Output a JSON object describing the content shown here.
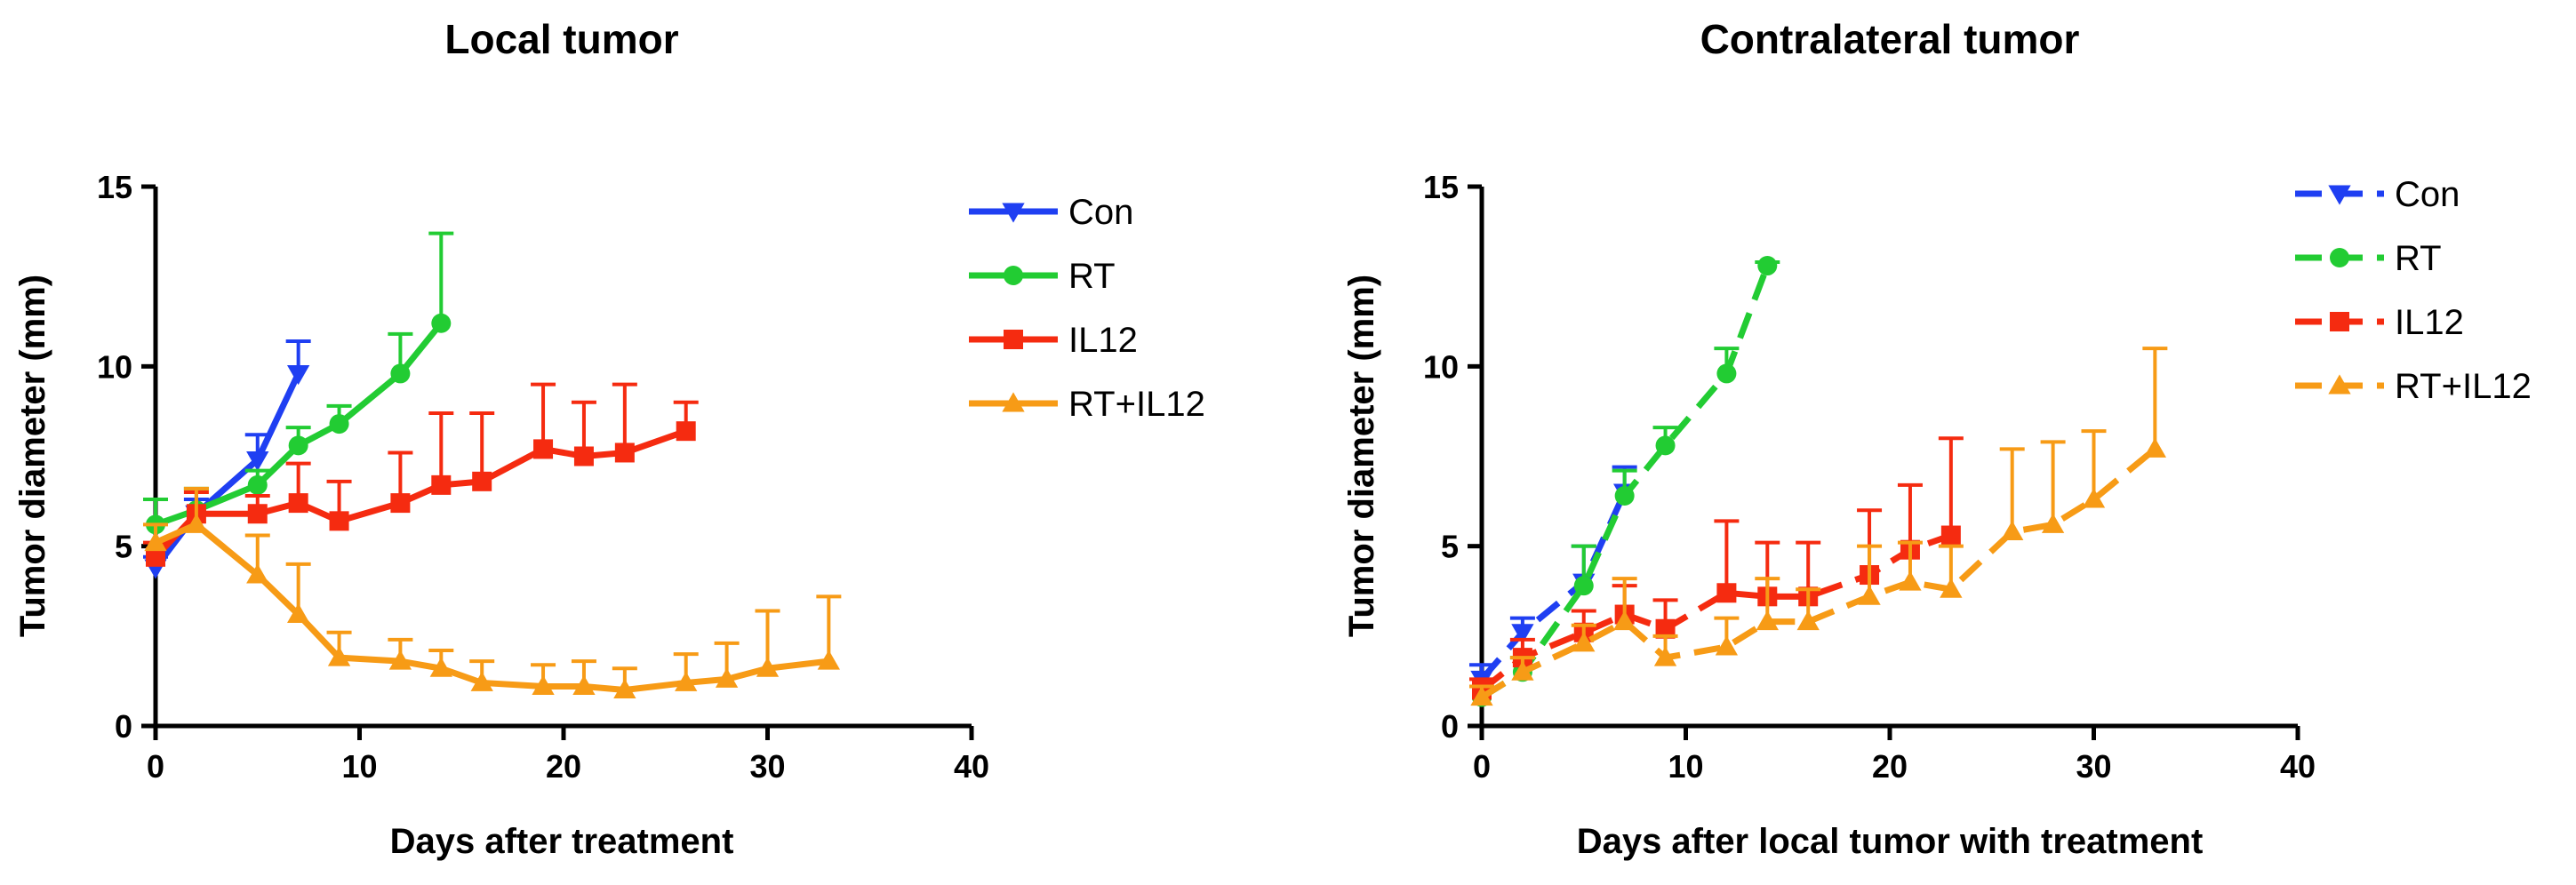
{
  "chart_data": [
    {
      "type": "line",
      "title": "Local tumor",
      "xlabel": "Days after treatment",
      "ylabel": "Tumor diameter (mm)",
      "xlim": [
        0,
        40
      ],
      "ylim": [
        0,
        15
      ],
      "xticks": [
        0,
        10,
        20,
        30,
        40
      ],
      "yticks": [
        0,
        5,
        10,
        15
      ],
      "xtick_labels": [
        "0",
        "10",
        "20",
        "30",
        "40"
      ],
      "ytick_labels": [
        "0",
        "5",
        "10",
        "15"
      ],
      "dashed": false,
      "grid": false,
      "legend_position": "right",
      "series": [
        {
          "name": "Con",
          "color": "#1f3ff2",
          "marker": "triangle-down",
          "x": [
            0,
            2,
            5,
            7
          ],
          "y": [
            4.4,
            5.9,
            7.4,
            9.8
          ],
          "err": [
            0.3,
            0.4,
            0.7,
            0.9
          ]
        },
        {
          "name": "RT",
          "color": "#22cc33",
          "marker": "circle",
          "x": [
            0,
            2,
            5,
            7,
            9,
            12,
            14
          ],
          "y": [
            5.6,
            6.0,
            6.7,
            7.8,
            8.4,
            9.8,
            11.2
          ],
          "err": [
            0.7,
            0.6,
            0.4,
            0.5,
            0.5,
            1.1,
            2.5
          ]
        },
        {
          "name": "IL12",
          "color": "#f52b10",
          "marker": "square",
          "x": [
            0,
            2,
            5,
            7,
            9,
            12,
            14,
            16,
            19,
            21,
            23,
            26
          ],
          "y": [
            4.7,
            5.9,
            5.9,
            6.2,
            5.7,
            6.2,
            6.7,
            6.8,
            7.7,
            7.5,
            7.6,
            8.2
          ],
          "err": [
            0.4,
            0.6,
            0.5,
            1.1,
            1.1,
            1.4,
            2.0,
            1.9,
            1.8,
            1.5,
            1.9,
            0.8
          ]
        },
        {
          "name": "RT+IL12",
          "color": "#f79b16",
          "marker": "triangle-up",
          "x": [
            0,
            2,
            5,
            7,
            9,
            12,
            14,
            16,
            19,
            21,
            23,
            26,
            28,
            30,
            33
          ],
          "y": [
            5.1,
            5.6,
            4.2,
            3.1,
            1.9,
            1.8,
            1.6,
            1.2,
            1.1,
            1.1,
            1.0,
            1.2,
            1.3,
            1.6,
            1.8
          ],
          "err": [
            0.5,
            1.0,
            1.1,
            1.4,
            0.7,
            0.6,
            0.5,
            0.6,
            0.6,
            0.7,
            0.6,
            0.8,
            1.0,
            1.6,
            1.8
          ]
        }
      ]
    },
    {
      "type": "line",
      "title": "Contralateral tumor",
      "xlabel": "Days after local tumor with treatment",
      "ylabel": "Tumor diameter (mm)",
      "xlim": [
        0,
        40
      ],
      "ylim": [
        0,
        15
      ],
      "xticks": [
        0,
        10,
        20,
        30,
        40
      ],
      "yticks": [
        0,
        5,
        10,
        15
      ],
      "xtick_labels": [
        "0",
        "10",
        "20",
        "30",
        "40"
      ],
      "ytick_labels": [
        "0",
        "5",
        "10",
        "15"
      ],
      "dashed": true,
      "grid": false,
      "legend_position": "right",
      "series": [
        {
          "name": "Con",
          "color": "#1f3ff2",
          "marker": "triangle-down",
          "x": [
            0,
            2,
            5,
            7
          ],
          "y": [
            1.3,
            2.6,
            4.0,
            6.5
          ],
          "err": [
            0.4,
            0.4,
            1.0,
            0.7
          ]
        },
        {
          "name": "RT",
          "color": "#22cc33",
          "marker": "circle",
          "x": [
            0,
            2,
            5,
            7,
            9,
            12,
            14
          ],
          "y": [
            0.8,
            1.5,
            3.9,
            6.4,
            7.8,
            9.8,
            12.8
          ],
          "err": [
            0.3,
            0.4,
            1.1,
            0.7,
            0.5,
            0.7,
            0.1
          ]
        },
        {
          "name": "IL12",
          "color": "#f52b10",
          "marker": "square",
          "x": [
            0,
            2,
            5,
            7,
            9,
            12,
            14,
            16,
            19,
            21,
            23
          ],
          "y": [
            1.0,
            1.9,
            2.6,
            3.1,
            2.7,
            3.7,
            3.6,
            3.6,
            4.2,
            4.9,
            5.3
          ],
          "err": [
            0.3,
            0.5,
            0.6,
            0.8,
            0.8,
            2.0,
            1.5,
            1.5,
            1.8,
            1.8,
            2.7
          ]
        },
        {
          "name": "RT+IL12",
          "color": "#f79b16",
          "marker": "triangle-up",
          "x": [
            0,
            2,
            5,
            7,
            9,
            12,
            14,
            16,
            19,
            21,
            23,
            26,
            28,
            30,
            33
          ],
          "y": [
            0.8,
            1.5,
            2.3,
            2.9,
            1.9,
            2.2,
            2.9,
            2.9,
            3.6,
            4.0,
            3.8,
            5.4,
            5.6,
            6.3,
            7.7
          ],
          "err": [
            0.3,
            0.4,
            0.5,
            1.2,
            0.6,
            0.8,
            1.2,
            0.9,
            1.4,
            1.1,
            1.2,
            2.3,
            2.3,
            1.9,
            2.8
          ]
        }
      ]
    }
  ]
}
